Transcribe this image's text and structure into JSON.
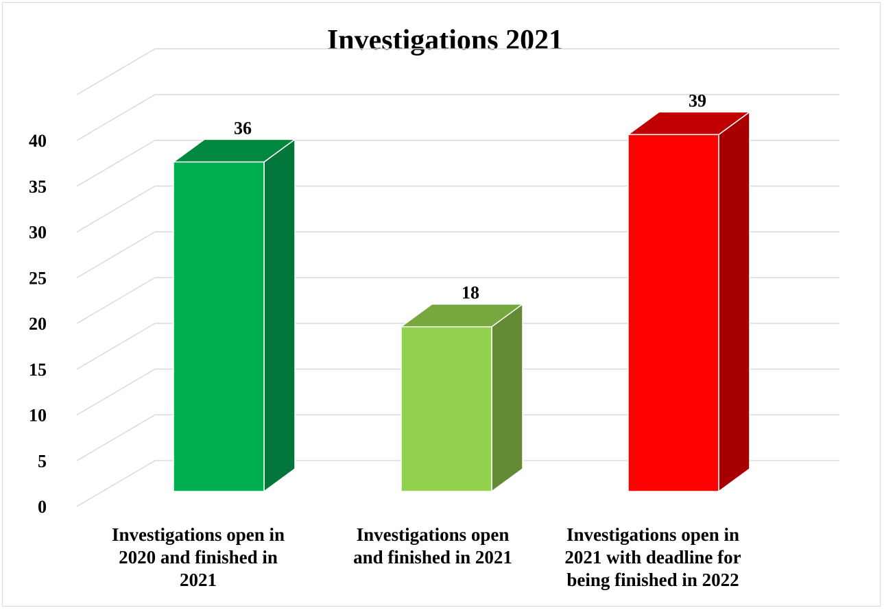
{
  "chart_data": {
    "type": "bar",
    "title": "Investigations 2021",
    "categories": [
      [
        "Investigations open in",
        "2020 and finished in",
        "2021"
      ],
      [
        "Investigations open",
        "and finished in 2021"
      ],
      [
        "Investigations open in",
        "2021 with deadline for",
        "being finished in 2022"
      ]
    ],
    "values": [
      36,
      18,
      39
    ],
    "data_labels": [
      "36",
      "18",
      "39"
    ],
    "ylim": [
      0,
      40
    ],
    "yticks": [
      "0",
      "5",
      "10",
      "15",
      "20",
      "25",
      "30",
      "35",
      "40"
    ],
    "grid": true,
    "style": "3d-column",
    "colors": {
      "bars": [
        {
          "front": "#00b050",
          "top": "#00893e",
          "side": "#00763a"
        },
        {
          "front": "#92d050",
          "top": "#76a83f",
          "side": "#638a35"
        },
        {
          "front": "#ff0000",
          "top": "#c00000",
          "side": "#a80000"
        }
      ],
      "grid": "#d9d9d9"
    }
  }
}
